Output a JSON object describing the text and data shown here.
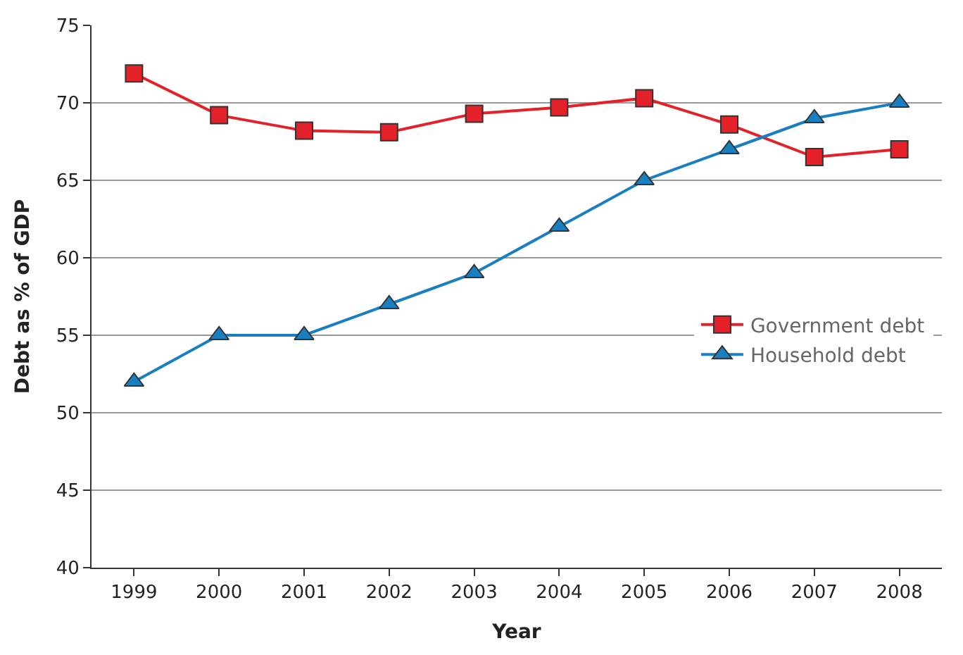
{
  "chart_data": {
    "type": "line",
    "xlabel": "Year",
    "ylabel": "Debt as % of GDP",
    "categories": [
      "1999",
      "2000",
      "2001",
      "2002",
      "2003",
      "2004",
      "2005",
      "2006",
      "2007",
      "2008"
    ],
    "series": [
      {
        "name": "Government debt",
        "color": "#e42128",
        "marker": "square",
        "values": [
          71.9,
          69.2,
          68.2,
          68.1,
          69.3,
          69.7,
          70.3,
          68.6,
          66.5,
          67.0
        ]
      },
      {
        "name": "Household debt",
        "color": "#1a7fc1",
        "marker": "triangle",
        "values": [
          52,
          55,
          55,
          57,
          59,
          62,
          65,
          67,
          69,
          70
        ]
      }
    ],
    "ylim": [
      40,
      75
    ],
    "yticks": [
      40,
      45,
      50,
      55,
      60,
      65,
      70,
      75
    ],
    "grid": "y",
    "legend": "right",
    "line_style": "solid"
  }
}
